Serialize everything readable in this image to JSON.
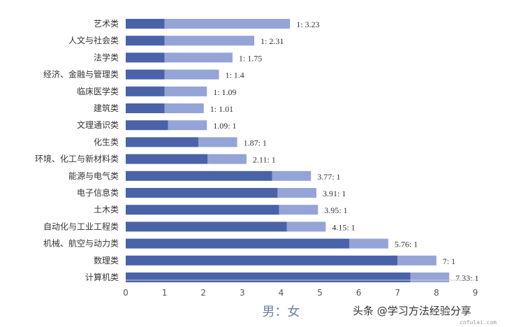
{
  "chart_data": {
    "type": "bar",
    "orientation": "horizontal",
    "stacked": true,
    "xlabel": "男：女",
    "xlim": [
      0,
      9
    ],
    "xticks": [
      "0",
      "1",
      "2",
      "3",
      "4",
      "5",
      "6",
      "7",
      "8",
      "9"
    ],
    "colors": {
      "male": "#4a62a8",
      "female": "#95a4d6"
    },
    "categories": [
      "艺术类",
      "人文与社会类",
      "法学类",
      "经济、金融与管理类",
      "临床医学类",
      "建筑类",
      "文理通识类",
      "化生类",
      "环境、化工与新材料类",
      "能源与电气类",
      "电子信息类",
      "土木类",
      "自动化与工业工程类",
      "机械、航空与动力类",
      "数理类",
      "计算机类"
    ],
    "series": [
      {
        "values": [
          1,
          1,
          1,
          1,
          1,
          1,
          1.09,
          1.87,
          2.11,
          3.77,
          3.91,
          3.95,
          4.15,
          5.76,
          7,
          7.33
        ]
      },
      {
        "values": [
          3.23,
          2.31,
          1.75,
          1.4,
          1.09,
          1.01,
          1,
          1,
          1,
          1,
          1,
          1,
          1,
          1,
          1,
          1
        ]
      }
    ],
    "labels": [
      "1: 3.23",
      "1: 2.31",
      "1: 1.75",
      "1: 1.4",
      "1: 1.09",
      "1: 1.01",
      "1.09: 1",
      "1.87: 1",
      "2.11: 1",
      "3.77: 1",
      "3.91: 1",
      "3.95: 1",
      "4.15: 1",
      "5.76: 1",
      "7: 1",
      "7.33: 1"
    ]
  },
  "watermark": "头条 @学习方法经验分享",
  "site": "cnfulai.com"
}
